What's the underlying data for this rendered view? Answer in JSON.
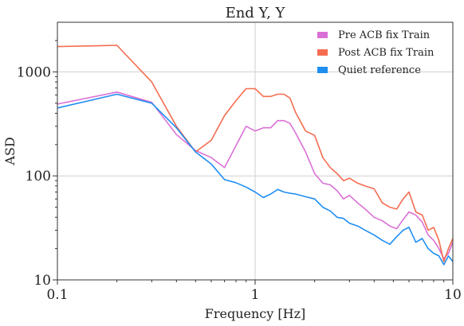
{
  "chart_data": {
    "type": "line",
    "title": "End Y,  Y",
    "xlabel": "Frequency [Hz]",
    "ylabel": "ASD",
    "xscale": "log",
    "yscale": "log",
    "xlim": [
      0.1,
      10
    ],
    "ylim": [
      10,
      3000
    ],
    "grid": true,
    "legend_position": "top-right",
    "x_ticks": [
      {
        "value": 0.1,
        "label": "0.1"
      },
      {
        "value": 1,
        "label": "1"
      },
      {
        "value": 10,
        "label": "10"
      }
    ],
    "y_ticks": [
      {
        "value": 10,
        "label": "10"
      },
      {
        "value": 100,
        "label": "100"
      },
      {
        "value": 1000,
        "label": "1000"
      }
    ],
    "series": [
      {
        "name": "Pre ACB fix Train",
        "color": "#da70d6",
        "x": [
          0.1,
          0.2,
          0.3,
          0.4,
          0.5,
          0.6,
          0.7,
          0.9,
          1.0,
          1.1,
          1.2,
          1.3,
          1.4,
          1.5,
          1.6,
          1.8,
          2.0,
          2.2,
          2.4,
          2.6,
          2.8,
          3.0,
          3.3,
          3.6,
          4.0,
          4.4,
          4.8,
          5.2,
          5.6,
          6.0,
          6.5,
          7.0,
          7.5,
          8.0,
          8.5,
          9.0,
          9.5,
          10.0
        ],
        "y": [
          490,
          640,
          510,
          250,
          175,
          150,
          120,
          300,
          270,
          290,
          290,
          340,
          340,
          320,
          260,
          170,
          105,
          85,
          82,
          72,
          60,
          65,
          55,
          48,
          40,
          37,
          33,
          31,
          38,
          45,
          42,
          36,
          27,
          24,
          20,
          16,
          18,
          23
        ]
      },
      {
        "name": "Post ACB fix Train",
        "color": "#f46d51",
        "x": [
          0.1,
          0.2,
          0.3,
          0.4,
          0.5,
          0.6,
          0.7,
          0.8,
          0.9,
          1.0,
          1.1,
          1.2,
          1.3,
          1.4,
          1.5,
          1.6,
          1.8,
          2.0,
          2.2,
          2.4,
          2.6,
          2.8,
          3.0,
          3.3,
          3.6,
          4.0,
          4.4,
          4.8,
          5.2,
          5.6,
          6.0,
          6.5,
          7.0,
          7.5,
          8.0,
          8.5,
          9.0,
          9.5,
          10.0
        ],
        "y": [
          1750,
          1800,
          800,
          300,
          170,
          220,
          380,
          530,
          690,
          690,
          580,
          580,
          610,
          610,
          560,
          410,
          270,
          245,
          150,
          120,
          105,
          90,
          95,
          85,
          80,
          75,
          55,
          50,
          48,
          60,
          70,
          45,
          42,
          30,
          32,
          24,
          15,
          20,
          25
        ]
      },
      {
        "name": "Quiet reference",
        "color": "#1f8ef1",
        "x": [
          0.1,
          0.2,
          0.3,
          0.4,
          0.5,
          0.6,
          0.7,
          0.8,
          0.9,
          1.0,
          1.1,
          1.2,
          1.3,
          1.4,
          1.5,
          1.6,
          1.8,
          2.0,
          2.2,
          2.4,
          2.6,
          2.8,
          3.0,
          3.3,
          3.6,
          4.0,
          4.4,
          4.8,
          5.2,
          5.6,
          6.0,
          6.5,
          7.0,
          7.5,
          8.0,
          8.5,
          9.0,
          9.5,
          10.0
        ],
        "y": [
          450,
          610,
          500,
          290,
          170,
          130,
          92,
          86,
          78,
          70,
          62,
          67,
          74,
          70,
          68,
          67,
          63,
          60,
          50,
          46,
          40,
          39,
          35,
          33,
          30,
          27,
          24,
          22,
          26,
          30,
          32,
          23,
          25,
          20,
          18,
          17,
          14,
          17,
          15
        ]
      }
    ]
  }
}
